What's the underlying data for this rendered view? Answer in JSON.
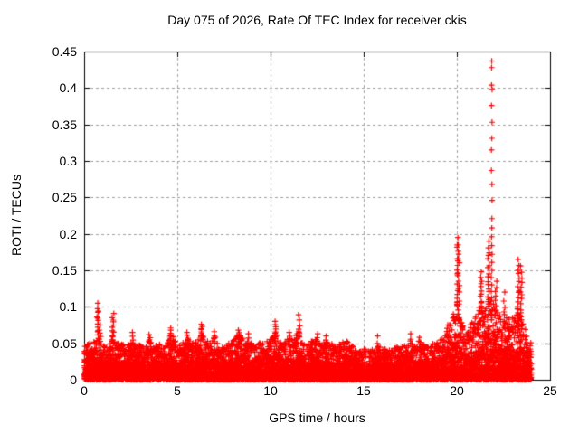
{
  "window": {
    "background": "#ffffff"
  },
  "chart_data": {
    "type": "scatter",
    "title": "Day 075 of 2026, Rate Of TEC Index for receiver ckis",
    "xlabel": "GPS time / hours",
    "ylabel": "ROTI / TECUs",
    "xlim": [
      0,
      25
    ],
    "ylim": [
      0,
      0.45
    ],
    "xticks": [
      0,
      5,
      10,
      15,
      20,
      25
    ],
    "xtick_labels": [
      "0",
      "5",
      "10",
      "15",
      "20",
      "25"
    ],
    "yticks": [
      0,
      0.05,
      0.1,
      0.15,
      0.2,
      0.25,
      0.3,
      0.35,
      0.4,
      0.45
    ],
    "ytick_labels": [
      "0",
      "0.05",
      "0.1",
      "0.15",
      "0.2",
      "0.25",
      "0.3",
      "0.35",
      "0.4",
      "0.45"
    ],
    "grid": true,
    "legend": "none",
    "marker": "plus",
    "colors": {
      "series": "#ff0000",
      "grid": "#a0a0a0",
      "axis": "#000000",
      "background": "#ffffff"
    },
    "data_start_hour": 0.0,
    "data_end_hour": 24.0,
    "envelope_step_hours": 0.25,
    "baseline_envelope": [
      0.048,
      0.05,
      0.052,
      0.058,
      0.052,
      0.046,
      0.056,
      0.05,
      0.05,
      0.045,
      0.055,
      0.046,
      0.05,
      0.042,
      0.055,
      0.046,
      0.05,
      0.042,
      0.056,
      0.062,
      0.046,
      0.05,
      0.058,
      0.05,
      0.054,
      0.065,
      0.056,
      0.05,
      0.058,
      0.05,
      0.045,
      0.05,
      0.055,
      0.062,
      0.058,
      0.054,
      0.05,
      0.046,
      0.054,
      0.05,
      0.058,
      0.065,
      0.054,
      0.05,
      0.058,
      0.054,
      0.068,
      0.05,
      0.05,
      0.054,
      0.058,
      0.05,
      0.054,
      0.05,
      0.045,
      0.05,
      0.054,
      0.05,
      0.044,
      0.04,
      0.044,
      0.04,
      0.044,
      0.048,
      0.044,
      0.04,
      0.044,
      0.048,
      0.044,
      0.048,
      0.054,
      0.048,
      0.052,
      0.048,
      0.044,
      0.05,
      0.054,
      0.058,
      0.066,
      0.085,
      0.11,
      0.08,
      0.07,
      0.08,
      0.09,
      0.105,
      0.095,
      0.115,
      0.105,
      0.09,
      0.085,
      0.09,
      0.085,
      0.1,
      0.09,
      0.062,
      0.05
    ],
    "spikes": [
      {
        "t": 0.73,
        "top": 0.105,
        "count": 14
      },
      {
        "t": 0.85,
        "top": 0.075,
        "count": 6
      },
      {
        "t": 1.55,
        "top": 0.091,
        "count": 12
      },
      {
        "t": 2.6,
        "top": 0.065,
        "count": 5
      },
      {
        "t": 3.5,
        "top": 0.062,
        "count": 4
      },
      {
        "t": 4.65,
        "top": 0.071,
        "count": 7
      },
      {
        "t": 5.55,
        "top": 0.065,
        "count": 5
      },
      {
        "t": 6.3,
        "top": 0.076,
        "count": 9
      },
      {
        "t": 7.0,
        "top": 0.066,
        "count": 5
      },
      {
        "t": 8.3,
        "top": 0.068,
        "count": 6
      },
      {
        "t": 8.8,
        "top": 0.063,
        "count": 4
      },
      {
        "t": 10.25,
        "top": 0.08,
        "count": 7
      },
      {
        "t": 11.0,
        "top": 0.065,
        "count": 4
      },
      {
        "t": 11.55,
        "top": 0.089,
        "count": 6
      },
      {
        "t": 12.5,
        "top": 0.063,
        "count": 4
      },
      {
        "t": 13.0,
        "top": 0.06,
        "count": 3
      },
      {
        "t": 15.75,
        "top": 0.06,
        "count": 3
      },
      {
        "t": 17.5,
        "top": 0.063,
        "count": 3
      },
      {
        "t": 18.0,
        "top": 0.058,
        "count": 3
      },
      {
        "t": 19.5,
        "top": 0.075,
        "count": 5
      },
      {
        "t": 20.05,
        "top": 0.195,
        "count": 20
      },
      {
        "t": 20.1,
        "top": 0.185,
        "count": 10
      },
      {
        "t": 21.3,
        "top": 0.148,
        "count": 12
      },
      {
        "t": 21.7,
        "top": 0.19,
        "count": 16
      },
      {
        "t": 22.1,
        "top": 0.135,
        "count": 8
      },
      {
        "t": 22.55,
        "top": 0.12,
        "count": 6
      },
      {
        "t": 23.3,
        "top": 0.165,
        "count": 14
      },
      {
        "t": 23.45,
        "top": 0.156,
        "count": 12
      }
    ],
    "big_spike": {
      "t": 21.87,
      "values": [
        0.437,
        0.428,
        0.404,
        0.398,
        0.376,
        0.353,
        0.331,
        0.315,
        0.287,
        0.268,
        0.246,
        0.221,
        0.208,
        0.196,
        0.184,
        0.172,
        0.161,
        0.15,
        0.14,
        0.13,
        0.121,
        0.112,
        0.104,
        0.096,
        0.089,
        0.082
      ]
    }
  }
}
